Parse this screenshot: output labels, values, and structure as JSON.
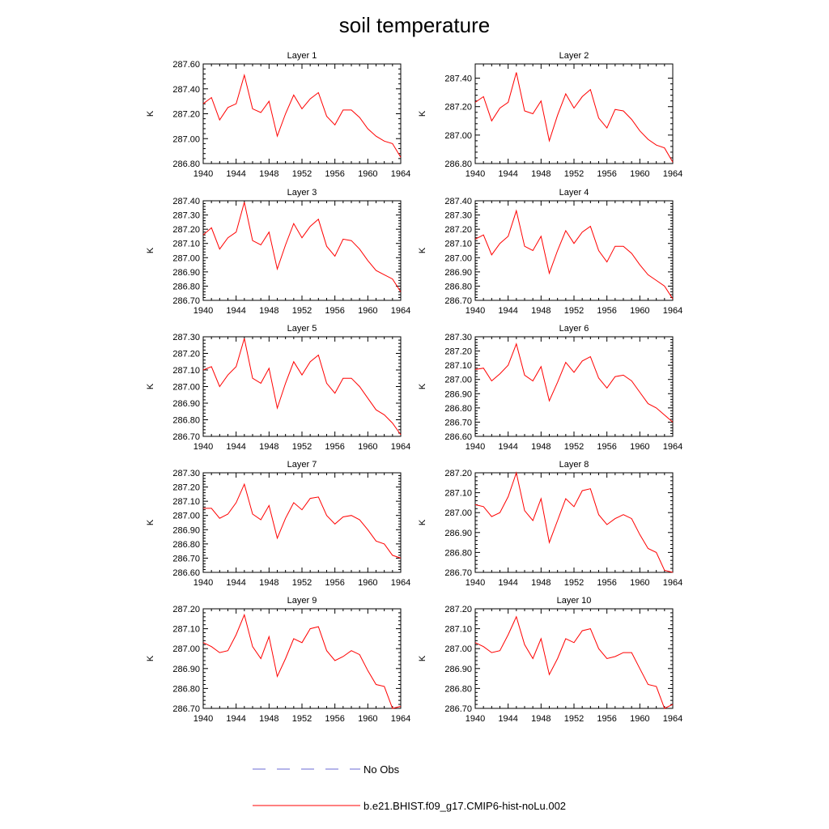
{
  "figure": {
    "title": "soil temperature",
    "legend": {
      "placement": "bottom-center",
      "entries": [
        {
          "label": "No Obs",
          "color": "#6b6bd6",
          "dash": "long-dash"
        },
        {
          "label": "b.e21.BHIST.f09_g17.CMIP6-hist-noLu.002",
          "color": "#ff0000",
          "dash": "solid"
        }
      ]
    }
  },
  "chart_data": [
    {
      "type": "line",
      "title": "Layer 1",
      "xlabel": "",
      "ylabel": "K",
      "xlim": [
        1940,
        1964
      ],
      "ylim": [
        286.8,
        287.6
      ],
      "xticks": [
        "1940",
        "1944",
        "1948",
        "1952",
        "1956",
        "1960",
        "1964"
      ],
      "yticks": [
        "286.80",
        "287.00",
        "287.20",
        "287.40",
        "287.60"
      ],
      "x": [
        1940,
        1941,
        1942,
        1943,
        1944,
        1945,
        1946,
        1947,
        1948,
        1949,
        1950,
        1951,
        1952,
        1953,
        1954,
        1955,
        1956,
        1957,
        1958,
        1959,
        1960,
        1961,
        1962,
        1963,
        1964
      ],
      "series": [
        {
          "name": "b.e21.BHIST.f09_g17.CMIP6-hist-noLu.002",
          "color": "#ff0000",
          "values": [
            287.28,
            287.33,
            287.15,
            287.25,
            287.28,
            287.51,
            287.24,
            287.21,
            287.3,
            287.02,
            287.2,
            287.35,
            287.24,
            287.32,
            287.37,
            287.18,
            287.11,
            287.23,
            287.23,
            287.17,
            287.08,
            287.02,
            286.98,
            286.96,
            286.85
          ]
        }
      ]
    },
    {
      "type": "line",
      "title": "Layer 2",
      "xlabel": "",
      "ylabel": "K",
      "xlim": [
        1940,
        1964
      ],
      "ylim": [
        286.8,
        287.5
      ],
      "xticks": [
        "1940",
        "1944",
        "1948",
        "1952",
        "1956",
        "1960",
        "1964"
      ],
      "yticks": [
        "286.80",
        "287.00",
        "287.20",
        "287.40"
      ],
      "x": [
        1940,
        1941,
        1942,
        1943,
        1944,
        1945,
        1946,
        1947,
        1948,
        1949,
        1950,
        1951,
        1952,
        1953,
        1954,
        1955,
        1956,
        1957,
        1958,
        1959,
        1960,
        1961,
        1962,
        1963,
        1964
      ],
      "series": [
        {
          "name": "b.e21.BHIST.f09_g17.CMIP6-hist-noLu.002",
          "color": "#ff0000",
          "values": [
            287.23,
            287.27,
            287.1,
            287.19,
            287.23,
            287.44,
            287.17,
            287.15,
            287.24,
            286.96,
            287.14,
            287.29,
            287.19,
            287.27,
            287.32,
            287.12,
            287.05,
            287.18,
            287.17,
            287.11,
            287.03,
            286.97,
            286.93,
            286.91,
            286.81
          ]
        }
      ]
    },
    {
      "type": "line",
      "title": "Layer 3",
      "xlabel": "",
      "ylabel": "K",
      "xlim": [
        1940,
        1964
      ],
      "ylim": [
        286.7,
        287.4
      ],
      "xticks": [
        "1940",
        "1944",
        "1948",
        "1952",
        "1956",
        "1960",
        "1964"
      ],
      "yticks": [
        "286.70",
        "286.80",
        "286.90",
        "287.00",
        "287.10",
        "287.20",
        "287.30",
        "287.40"
      ],
      "x": [
        1940,
        1941,
        1942,
        1943,
        1944,
        1945,
        1946,
        1947,
        1948,
        1949,
        1950,
        1951,
        1952,
        1953,
        1954,
        1955,
        1956,
        1957,
        1958,
        1959,
        1960,
        1961,
        1962,
        1963,
        1964
      ],
      "series": [
        {
          "name": "b.e21.BHIST.f09_g17.CMIP6-hist-noLu.002",
          "color": "#ff0000",
          "values": [
            287.16,
            287.21,
            287.06,
            287.14,
            287.18,
            287.39,
            287.12,
            287.09,
            287.18,
            286.92,
            287.09,
            287.24,
            287.14,
            287.22,
            287.27,
            287.08,
            287.01,
            287.13,
            287.12,
            287.06,
            286.98,
            286.91,
            286.88,
            286.85,
            286.76
          ]
        }
      ]
    },
    {
      "type": "line",
      "title": "Layer 4",
      "xlabel": "",
      "ylabel": "K",
      "xlim": [
        1940,
        1964
      ],
      "ylim": [
        286.7,
        287.4
      ],
      "xticks": [
        "1940",
        "1944",
        "1948",
        "1952",
        "1956",
        "1960",
        "1964"
      ],
      "yticks": [
        "286.70",
        "286.80",
        "286.90",
        "287.00",
        "287.10",
        "287.20",
        "287.30",
        "287.40"
      ],
      "x": [
        1940,
        1941,
        1942,
        1943,
        1944,
        1945,
        1946,
        1947,
        1948,
        1949,
        1950,
        1951,
        1952,
        1953,
        1954,
        1955,
        1956,
        1957,
        1958,
        1959,
        1960,
        1961,
        1962,
        1963,
        1964
      ],
      "series": [
        {
          "name": "b.e21.BHIST.f09_g17.CMIP6-hist-noLu.002",
          "color": "#ff0000",
          "values": [
            287.13,
            287.16,
            287.02,
            287.1,
            287.15,
            287.33,
            287.08,
            287.05,
            287.15,
            286.89,
            287.05,
            287.19,
            287.1,
            287.18,
            287.22,
            287.05,
            286.97,
            287.08,
            287.08,
            287.03,
            286.95,
            286.88,
            286.84,
            286.8,
            286.71
          ]
        }
      ]
    },
    {
      "type": "line",
      "title": "Layer 5",
      "xlabel": "",
      "ylabel": "K",
      "xlim": [
        1940,
        1964
      ],
      "ylim": [
        286.7,
        287.3
      ],
      "xticks": [
        "1940",
        "1944",
        "1948",
        "1952",
        "1956",
        "1960",
        "1964"
      ],
      "yticks": [
        "286.70",
        "286.80",
        "286.90",
        "287.00",
        "287.10",
        "287.20",
        "287.30"
      ],
      "x": [
        1940,
        1941,
        1942,
        1943,
        1944,
        1945,
        1946,
        1947,
        1948,
        1949,
        1950,
        1951,
        1952,
        1953,
        1954,
        1955,
        1956,
        1957,
        1958,
        1959,
        1960,
        1961,
        1962,
        1963,
        1964
      ],
      "series": [
        {
          "name": "b.e21.BHIST.f09_g17.CMIP6-hist-noLu.002",
          "color": "#ff0000",
          "values": [
            287.1,
            287.12,
            287.0,
            287.07,
            287.12,
            287.29,
            287.05,
            287.02,
            287.11,
            286.87,
            287.02,
            287.15,
            287.07,
            287.15,
            287.19,
            287.02,
            286.96,
            287.05,
            287.05,
            287.0,
            286.93,
            286.86,
            286.83,
            286.78,
            286.71
          ]
        }
      ]
    },
    {
      "type": "line",
      "title": "Layer 6",
      "xlabel": "",
      "ylabel": "K",
      "xlim": [
        1940,
        1964
      ],
      "ylim": [
        286.6,
        287.3
      ],
      "xticks": [
        "1940",
        "1944",
        "1948",
        "1952",
        "1956",
        "1960",
        "1964"
      ],
      "yticks": [
        "286.60",
        "286.70",
        "286.80",
        "286.90",
        "287.00",
        "287.10",
        "287.20",
        "287.30"
      ],
      "x": [
        1940,
        1941,
        1942,
        1943,
        1944,
        1945,
        1946,
        1947,
        1948,
        1949,
        1950,
        1951,
        1952,
        1953,
        1954,
        1955,
        1956,
        1957,
        1958,
        1959,
        1960,
        1961,
        1962,
        1963,
        1964
      ],
      "series": [
        {
          "name": "b.e21.BHIST.f09_g17.CMIP6-hist-noLu.002",
          "color": "#ff0000",
          "values": [
            287.07,
            287.08,
            286.99,
            287.04,
            287.1,
            287.25,
            287.03,
            286.99,
            287.09,
            286.85,
            286.98,
            287.12,
            287.05,
            287.13,
            287.16,
            287.01,
            286.94,
            287.02,
            287.03,
            286.99,
            286.91,
            286.83,
            286.8,
            286.75,
            286.7
          ]
        }
      ]
    },
    {
      "type": "line",
      "title": "Layer 7",
      "xlabel": "",
      "ylabel": "K",
      "xlim": [
        1940,
        1964
      ],
      "ylim": [
        286.6,
        287.3
      ],
      "xticks": [
        "1940",
        "1944",
        "1948",
        "1952",
        "1956",
        "1960",
        "1964"
      ],
      "yticks": [
        "286.60",
        "286.70",
        "286.80",
        "286.90",
        "287.00",
        "287.10",
        "287.20",
        "287.30"
      ],
      "x": [
        1940,
        1941,
        1942,
        1943,
        1944,
        1945,
        1946,
        1947,
        1948,
        1949,
        1950,
        1951,
        1952,
        1953,
        1954,
        1955,
        1956,
        1957,
        1958,
        1959,
        1960,
        1961,
        1962,
        1963,
        1964
      ],
      "series": [
        {
          "name": "b.e21.BHIST.f09_g17.CMIP6-hist-noLu.002",
          "color": "#ff0000",
          "values": [
            287.05,
            287.05,
            286.98,
            287.01,
            287.09,
            287.22,
            287.01,
            286.97,
            287.07,
            286.84,
            286.98,
            287.09,
            287.04,
            287.12,
            287.13,
            287.0,
            286.94,
            286.99,
            287.0,
            286.97,
            286.9,
            286.82,
            286.8,
            286.72,
            286.7
          ]
        }
      ]
    },
    {
      "type": "line",
      "title": "Layer 8",
      "xlabel": "",
      "ylabel": "K",
      "xlim": [
        1940,
        1964
      ],
      "ylim": [
        286.7,
        287.2
      ],
      "xticks": [
        "1940",
        "1944",
        "1948",
        "1952",
        "1956",
        "1960",
        "1964"
      ],
      "yticks": [
        "286.70",
        "286.80",
        "286.90",
        "287.00",
        "287.10",
        "287.20"
      ],
      "x": [
        1940,
        1941,
        1942,
        1943,
        1944,
        1945,
        1946,
        1947,
        1948,
        1949,
        1950,
        1951,
        1952,
        1953,
        1954,
        1955,
        1956,
        1957,
        1958,
        1959,
        1960,
        1961,
        1962,
        1963,
        1964
      ],
      "series": [
        {
          "name": "b.e21.BHIST.f09_g17.CMIP6-hist-noLu.002",
          "color": "#ff0000",
          "values": [
            287.04,
            287.03,
            286.98,
            287.0,
            287.08,
            287.2,
            287.01,
            286.96,
            287.07,
            286.85,
            286.96,
            287.07,
            287.03,
            287.11,
            287.12,
            286.99,
            286.94,
            286.97,
            286.99,
            286.97,
            286.89,
            286.82,
            286.8,
            286.71,
            286.7
          ]
        }
      ]
    },
    {
      "type": "line",
      "title": "Layer 9",
      "xlabel": "",
      "ylabel": "K",
      "xlim": [
        1940,
        1964
      ],
      "ylim": [
        286.7,
        287.2
      ],
      "xticks": [
        "1940",
        "1944",
        "1948",
        "1952",
        "1956",
        "1960",
        "1964"
      ],
      "yticks": [
        "286.70",
        "286.80",
        "286.90",
        "287.00",
        "287.10",
        "287.20"
      ],
      "x": [
        1940,
        1941,
        1942,
        1943,
        1944,
        1945,
        1946,
        1947,
        1948,
        1949,
        1950,
        1951,
        1952,
        1953,
        1954,
        1955,
        1956,
        1957,
        1958,
        1959,
        1960,
        1961,
        1962,
        1963,
        1964
      ],
      "series": [
        {
          "name": "b.e21.BHIST.f09_g17.CMIP6-hist-noLu.002",
          "color": "#ff0000",
          "values": [
            287.03,
            287.01,
            286.98,
            286.99,
            287.07,
            287.17,
            287.01,
            286.95,
            287.06,
            286.86,
            286.95,
            287.05,
            287.03,
            287.1,
            287.11,
            286.99,
            286.94,
            286.96,
            286.99,
            286.97,
            286.89,
            286.82,
            286.81,
            286.7,
            286.71
          ]
        }
      ]
    },
    {
      "type": "line",
      "title": "Layer 10",
      "xlabel": "",
      "ylabel": "K",
      "xlim": [
        1940,
        1964
      ],
      "ylim": [
        286.7,
        287.2
      ],
      "xticks": [
        "1940",
        "1944",
        "1948",
        "1952",
        "1956",
        "1960",
        "1964"
      ],
      "yticks": [
        "286.70",
        "286.80",
        "286.90",
        "287.00",
        "287.10",
        "287.20"
      ],
      "x": [
        1940,
        1941,
        1942,
        1943,
        1944,
        1945,
        1946,
        1947,
        1948,
        1949,
        1950,
        1951,
        1952,
        1953,
        1954,
        1955,
        1956,
        1957,
        1958,
        1959,
        1960,
        1961,
        1962,
        1963,
        1964
      ],
      "series": [
        {
          "name": "b.e21.BHIST.f09_g17.CMIP6-hist-noLu.002",
          "color": "#ff0000",
          "values": [
            287.03,
            287.01,
            286.98,
            286.99,
            287.07,
            287.16,
            287.02,
            286.95,
            287.05,
            286.87,
            286.95,
            287.05,
            287.03,
            287.09,
            287.1,
            287.0,
            286.95,
            286.96,
            286.98,
            286.98,
            286.9,
            286.82,
            286.81,
            286.7,
            286.72
          ]
        }
      ]
    }
  ]
}
